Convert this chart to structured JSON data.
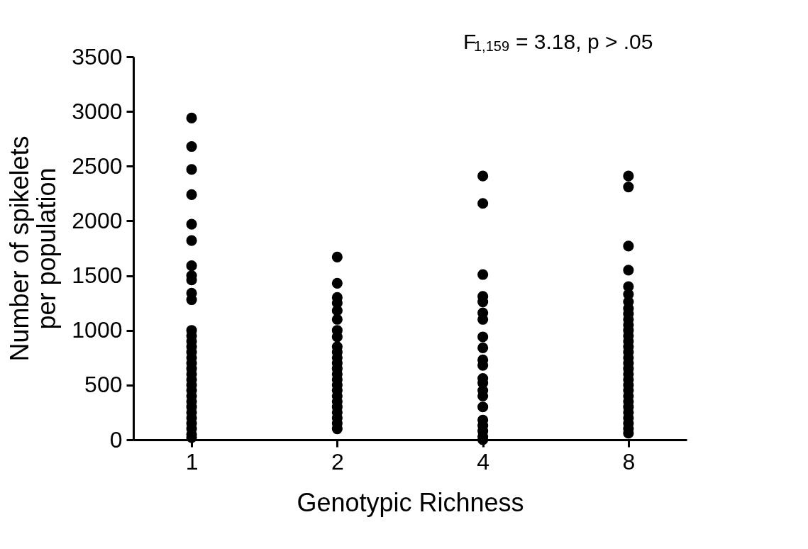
{
  "chart_data": {
    "type": "scatter",
    "xlabel": "Genotypic Richness",
    "ylabel": "Number of spikelets\nper population",
    "categories": [
      "1",
      "2",
      "4",
      "8"
    ],
    "series": [
      {
        "color": "#000000",
        "x": [
          "1",
          "1",
          "1",
          "1",
          "1",
          "1",
          "1",
          "1",
          "1",
          "1",
          "1",
          "1",
          "1",
          "1",
          "1",
          "1",
          "1",
          "1",
          "1",
          "1",
          "1",
          "1",
          "1",
          "1",
          "1",
          "1",
          "1",
          "1",
          "1",
          "1",
          "1",
          "1",
          "2",
          "2",
          "2",
          "2",
          "2",
          "2",
          "2",
          "2",
          "2",
          "2",
          "2",
          "2",
          "2",
          "2",
          "2",
          "2",
          "2",
          "2",
          "2",
          "2",
          "2",
          "2",
          "2",
          "2",
          "4",
          "4",
          "4",
          "4",
          "4",
          "4",
          "4",
          "4",
          "4",
          "4",
          "4",
          "4",
          "4",
          "4",
          "4",
          "4",
          "4",
          "4",
          "4",
          "4",
          "4",
          "8",
          "8",
          "8",
          "8",
          "8",
          "8",
          "8",
          "8",
          "8",
          "8",
          "8",
          "8",
          "8",
          "8",
          "8",
          "8",
          "8",
          "8",
          "8",
          "8",
          "8",
          "8",
          "8",
          "8",
          "8",
          "8",
          "8",
          "8",
          "8",
          "8",
          "8"
        ],
        "values": [
          2940,
          2680,
          2470,
          2240,
          1970,
          1820,
          1590,
          1500,
          1460,
          1340,
          1280,
          1000,
          950,
          900,
          850,
          800,
          750,
          700,
          650,
          500,
          450,
          400,
          350,
          300,
          250,
          200,
          150,
          100,
          50,
          20,
          600,
          550,
          1670,
          1430,
          1300,
          1250,
          1180,
          1100,
          940,
          800,
          750,
          700,
          650,
          600,
          550,
          500,
          450,
          400,
          350,
          300,
          250,
          200,
          150,
          100,
          850,
          1000,
          2410,
          2160,
          1510,
          1310,
          1260,
          1160,
          1100,
          940,
          840,
          730,
          680,
          560,
          520,
          450,
          400,
          300,
          180,
          130,
          80,
          30,
          0,
          2410,
          2310,
          1770,
          1550,
          1400,
          1330,
          1260,
          1200,
          1150,
          1100,
          1050,
          1000,
          950,
          900,
          850,
          800,
          750,
          700,
          650,
          600,
          550,
          500,
          450,
          400,
          350,
          300,
          250,
          200,
          150,
          100,
          60
        ]
      }
    ],
    "ylim": [
      0,
      3500
    ],
    "yticks": [
      0,
      500,
      1000,
      1500,
      2000,
      2500,
      3000,
      3500
    ],
    "marker": "circle",
    "grid": false,
    "legend": false,
    "annotations": [
      "F$_{1,159}$ = 3.18, p > .05"
    ]
  }
}
